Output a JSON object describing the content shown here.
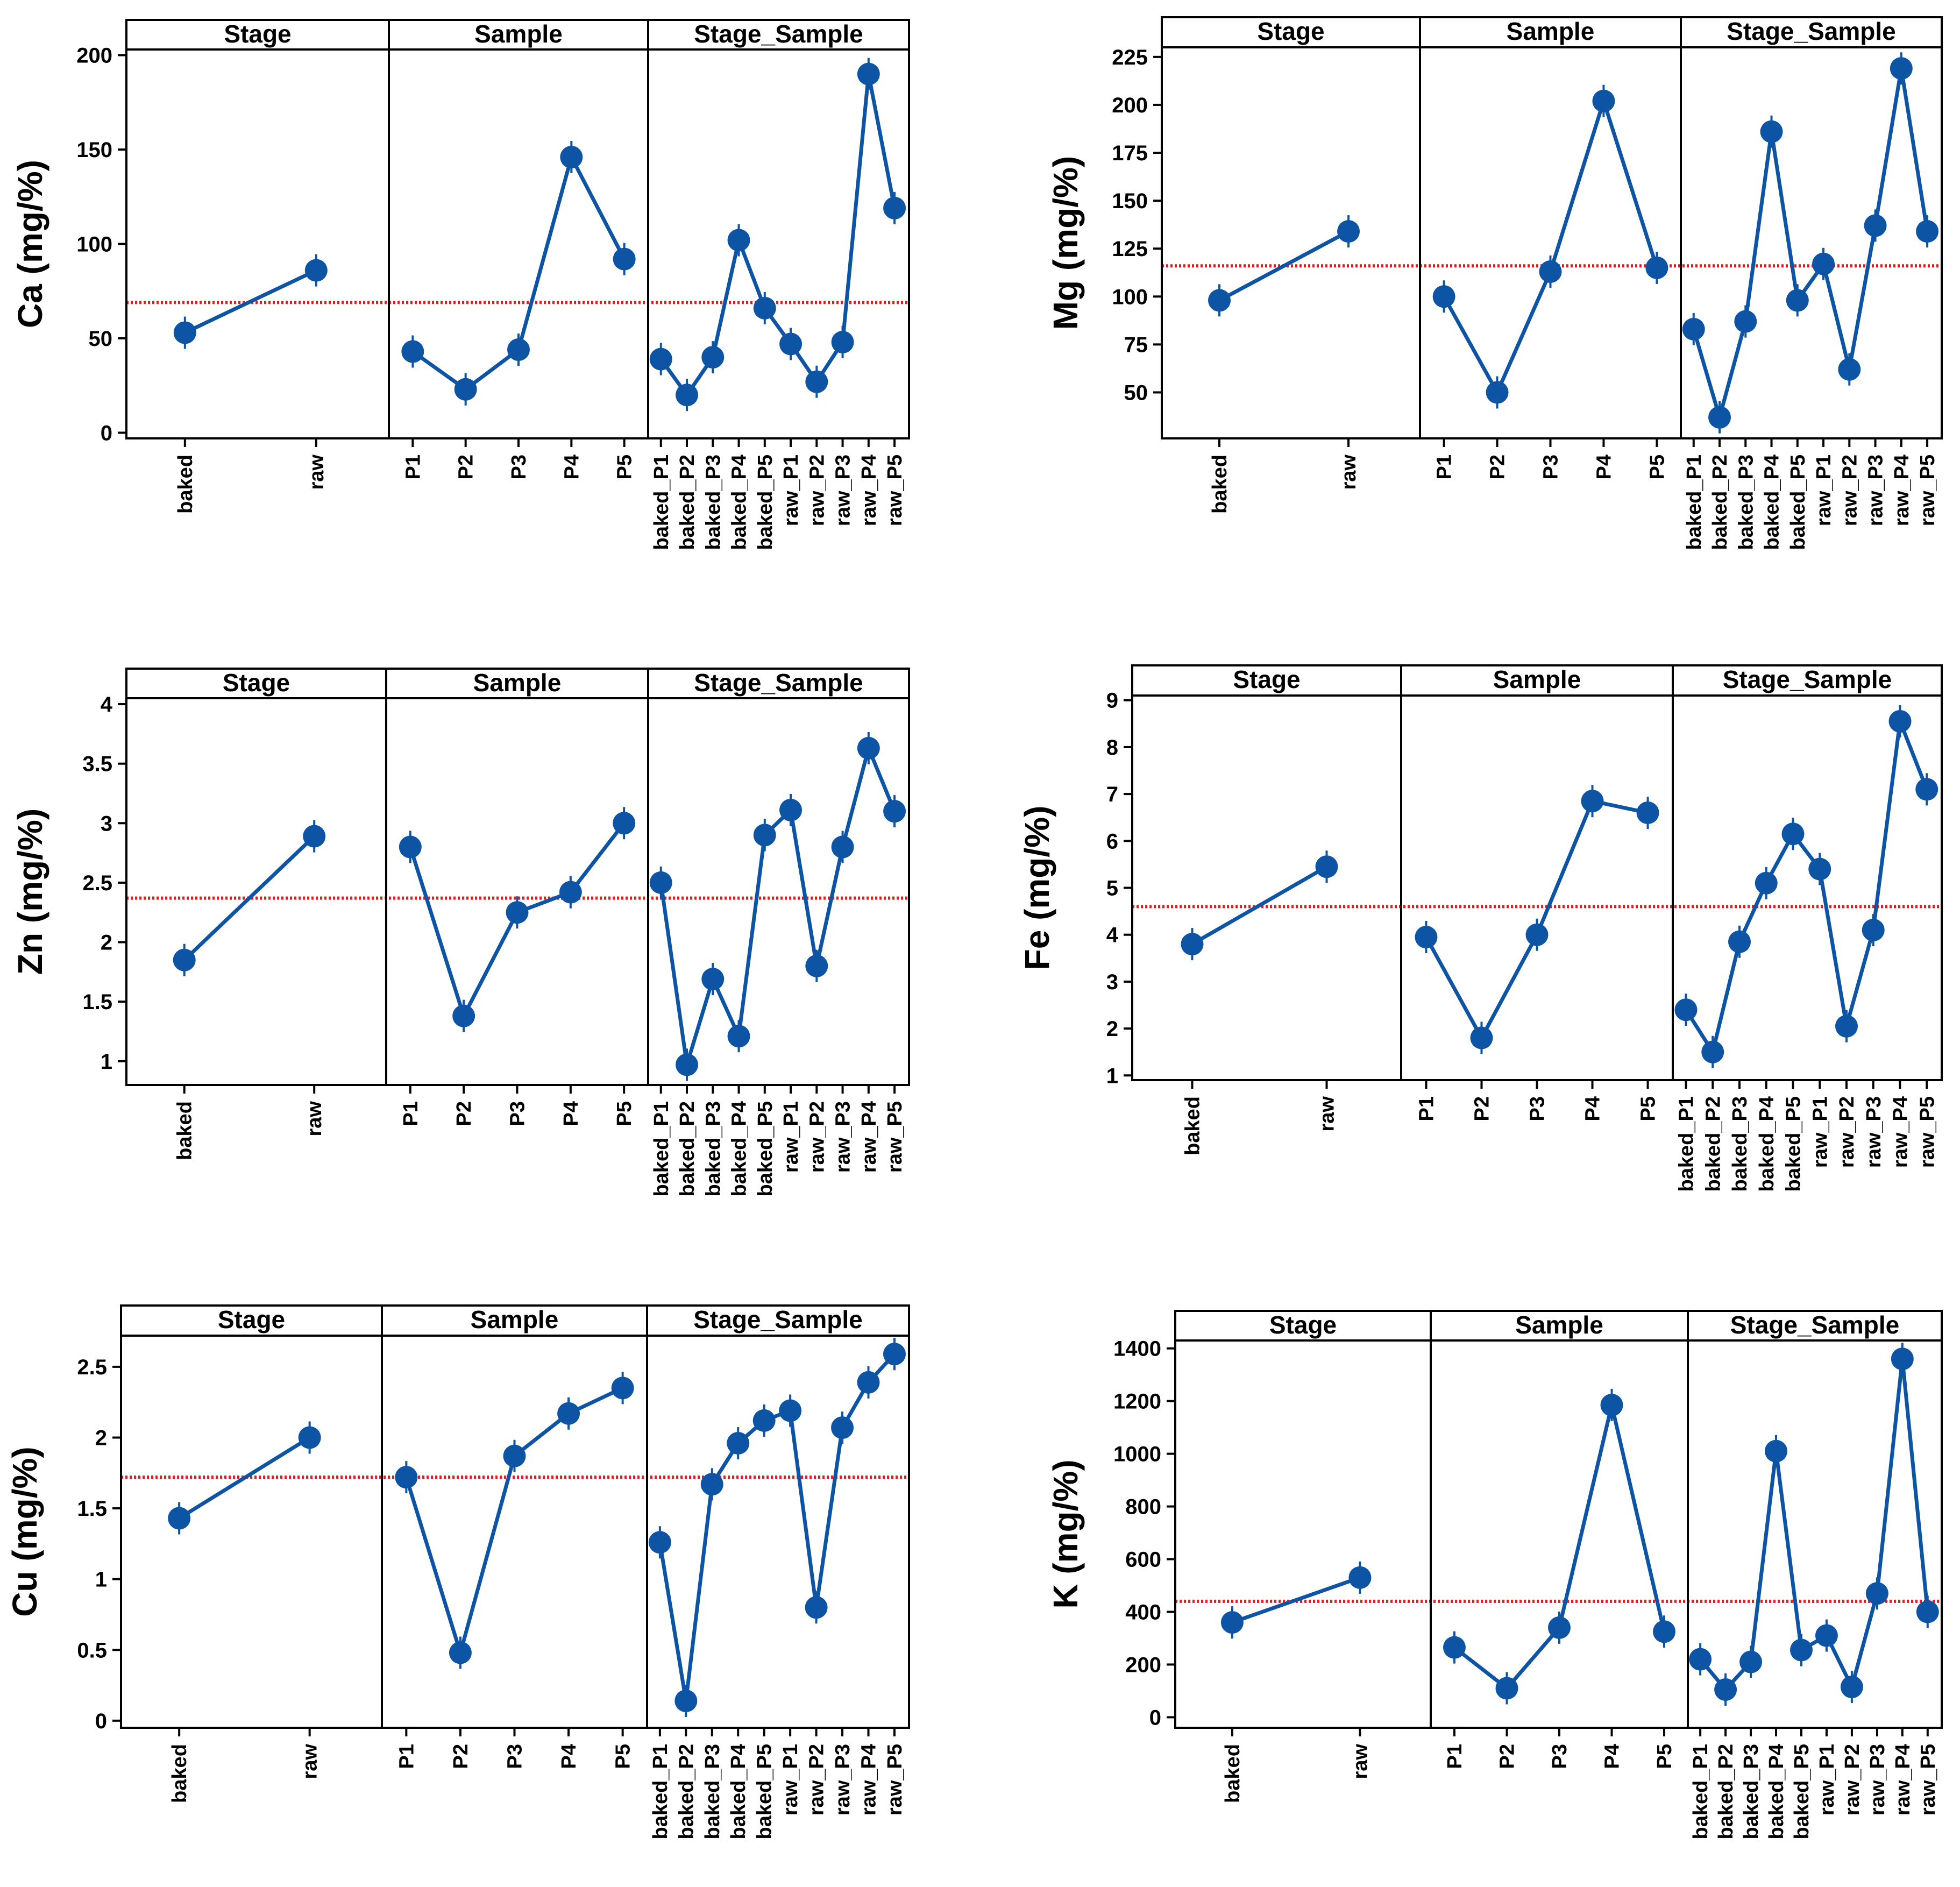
{
  "panel_titles": [
    "Stage",
    "Sample",
    "Stage_Sample"
  ],
  "chart_data": [
    {
      "type": "line",
      "ylabel": "Ca (mg/%)",
      "ylim": [
        -3,
        203
      ],
      "yticks": [
        0,
        50,
        100,
        150,
        200
      ],
      "reference_line": 69,
      "panels": [
        {
          "title": "Stage",
          "categories": [
            "baked",
            "raw"
          ],
          "values": [
            53,
            86
          ]
        },
        {
          "title": "Sample",
          "categories": [
            "P1",
            "P2",
            "P3",
            "P4",
            "P5"
          ],
          "values": [
            43,
            23,
            44,
            146,
            92
          ]
        },
        {
          "title": "Stage_Sample",
          "categories": [
            "baked_P1",
            "baked_P2",
            "baked_P3",
            "baked_P4",
            "baked_P5",
            "raw_P1",
            "raw_P2",
            "raw_P3",
            "raw_P4",
            "raw_P5"
          ],
          "values": [
            39,
            20,
            40,
            102,
            66,
            47,
            27,
            48,
            190,
            119
          ]
        }
      ]
    },
    {
      "type": "line",
      "ylabel": "Mg  (mg/%)",
      "ylim": [
        26,
        230
      ],
      "yticks": [
        50,
        75,
        100,
        125,
        150,
        175,
        200,
        225
      ],
      "reference_line": 116,
      "panels": [
        {
          "title": "Stage",
          "categories": [
            "baked",
            "raw"
          ],
          "values": [
            98,
            134
          ]
        },
        {
          "title": "Sample",
          "categories": [
            "P1",
            "P2",
            "P3",
            "P4",
            "P5"
          ],
          "values": [
            100,
            50,
            113,
            202,
            115
          ]
        },
        {
          "title": "Stage_Sample",
          "categories": [
            "baked_P1",
            "baked_P2",
            "baked_P3",
            "baked_P4",
            "baked_P5",
            "raw_P1",
            "raw_P2",
            "raw_P3",
            "raw_P4",
            "raw_P5"
          ],
          "values": [
            83,
            37,
            87,
            186,
            98,
            117,
            62,
            137,
            219,
            134
          ]
        }
      ]
    },
    {
      "type": "line",
      "ylabel": "Zn  (mg/%)",
      "ylim": [
        0.8,
        4.05
      ],
      "yticks": [
        1.0,
        1.5,
        2.0,
        2.5,
        3.0,
        3.5,
        4.0
      ],
      "reference_line": 2.37,
      "panels": [
        {
          "title": "Stage",
          "categories": [
            "baked",
            "raw"
          ],
          "values": [
            1.85,
            2.89
          ]
        },
        {
          "title": "Sample",
          "categories": [
            "P1",
            "P2",
            "P3",
            "P4",
            "P5"
          ],
          "values": [
            2.8,
            1.38,
            2.25,
            2.42,
            3.0
          ]
        },
        {
          "title": "Stage_Sample",
          "categories": [
            "baked_P1",
            "baked_P2",
            "baked_P3",
            "baked_P4",
            "baked_P5",
            "raw_P1",
            "raw_P2",
            "raw_P3",
            "raw_P4",
            "raw_P5"
          ],
          "values": [
            2.5,
            0.97,
            1.69,
            1.21,
            2.9,
            3.11,
            1.8,
            2.8,
            3.63,
            3.1
          ]
        }
      ]
    },
    {
      "type": "line",
      "ylabel": "Fe (mg/%)",
      "ylim": [
        0.9,
        9.1
      ],
      "yticks": [
        1,
        2,
        3,
        4,
        5,
        6,
        7,
        8,
        9
      ],
      "reference_line": 4.6,
      "panels": [
        {
          "title": "Stage",
          "categories": [
            "baked",
            "raw"
          ],
          "values": [
            3.8,
            5.45
          ]
        },
        {
          "title": "Sample",
          "categories": [
            "P1",
            "P2",
            "P3",
            "P4",
            "P5"
          ],
          "values": [
            3.95,
            1.8,
            4.0,
            6.85,
            6.6
          ]
        },
        {
          "title": "Stage_Sample",
          "categories": [
            "baked_P1",
            "baked_P2",
            "baked_P3",
            "baked_P4",
            "baked_P5",
            "raw_P1",
            "raw_P2",
            "raw_P3",
            "raw_P4",
            "raw_P5"
          ],
          "values": [
            2.4,
            1.5,
            3.85,
            5.1,
            6.15,
            5.4,
            2.05,
            4.1,
            8.55,
            7.1
          ]
        }
      ]
    },
    {
      "type": "line",
      "ylabel": "Cu (mg/%)",
      "ylim": [
        -0.05,
        2.72
      ],
      "yticks": [
        0.0,
        0.5,
        1.0,
        1.5,
        2.0,
        2.5
      ],
      "reference_line": 1.72,
      "panels": [
        {
          "title": "Stage",
          "categories": [
            "baked",
            "raw"
          ],
          "values": [
            1.43,
            2.0
          ]
        },
        {
          "title": "Sample",
          "categories": [
            "P1",
            "P2",
            "P3",
            "P4",
            "P5"
          ],
          "values": [
            1.72,
            0.48,
            1.87,
            2.17,
            2.35
          ]
        },
        {
          "title": "Stage_Sample",
          "categories": [
            "baked_P1",
            "baked_P2",
            "baked_P3",
            "baked_P4",
            "baked_P5",
            "raw_P1",
            "raw_P2",
            "raw_P3",
            "raw_P4",
            "raw_P5"
          ],
          "values": [
            1.26,
            0.14,
            1.67,
            1.96,
            2.12,
            2.19,
            0.8,
            2.07,
            2.39,
            2.59
          ]
        }
      ]
    },
    {
      "type": "line",
      "ylabel": "K (mg/%)",
      "ylim": [
        -40,
        1430
      ],
      "yticks": [
        0,
        200,
        400,
        600,
        800,
        1000,
        1200,
        1400
      ],
      "reference_line": 440,
      "panels": [
        {
          "title": "Stage",
          "categories": [
            "baked",
            "raw"
          ],
          "values": [
            360,
            530
          ]
        },
        {
          "title": "Sample",
          "categories": [
            "P1",
            "P2",
            "P3",
            "P4",
            "P5"
          ],
          "values": [
            265,
            110,
            340,
            1185,
            325
          ]
        },
        {
          "title": "Stage_Sample",
          "categories": [
            "baked_P1",
            "baked_P2",
            "baked_P3",
            "baked_P4",
            "baked_P5",
            "raw_P1",
            "raw_P2",
            "raw_P3",
            "raw_P4",
            "raw_P5"
          ],
          "values": [
            220,
            105,
            210,
            1010,
            255,
            310,
            115,
            470,
            1360,
            400
          ]
        }
      ]
    }
  ]
}
